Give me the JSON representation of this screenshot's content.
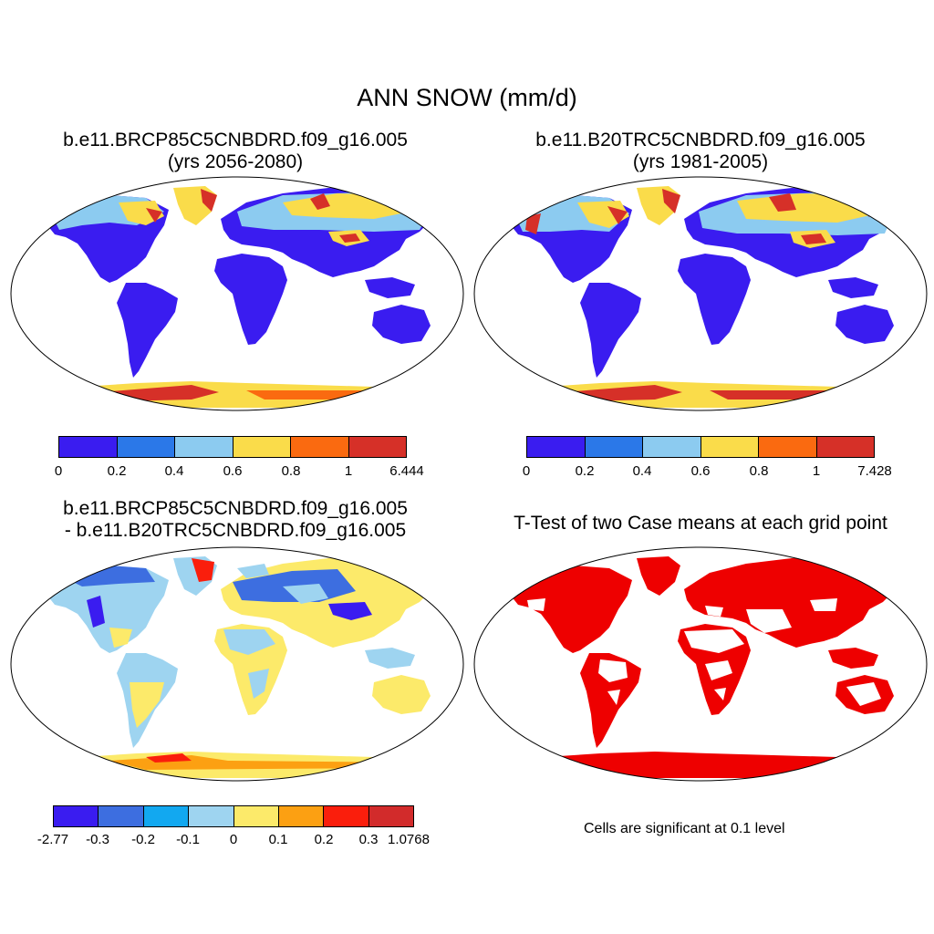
{
  "title": "ANN SNOW (mm/d)",
  "panels": [
    {
      "id": "future",
      "title_line1": "b.e11.BRCP85C5CNBDRD.f09_g16.005",
      "title_line2": "(yrs 2056-2080)",
      "colorbar": {
        "colors": [
          "#3a1cf0",
          "#2b78e8",
          "#8ccbf0",
          "#fadc4a",
          "#fa6a10",
          "#d63028"
        ],
        "labels": [
          "0",
          "0.2",
          "0.4",
          "0.6",
          "0.8",
          "1",
          "6.444"
        ]
      }
    },
    {
      "id": "historical",
      "title_line1": "b.e11.B20TRC5CNBDRD.f09_g16.005",
      "title_line2": "(yrs 1981-2005)",
      "colorbar": {
        "colors": [
          "#3a1cf0",
          "#2b78e8",
          "#8ccbf0",
          "#fadc4a",
          "#fa6a10",
          "#d63028"
        ],
        "labels": [
          "0",
          "0.2",
          "0.4",
          "0.6",
          "0.8",
          "1",
          "7.428"
        ]
      }
    },
    {
      "id": "difference",
      "title_line1": "b.e11.BRCP85C5CNBDRD.f09_g16.005",
      "title_line2": "- b.e11.B20TRC5CNBDRD.f09_g16.005",
      "colorbar": {
        "colors": [
          "#3a1cf0",
          "#3d6ee0",
          "#12a8f0",
          "#9ed4f0",
          "#fcea6a",
          "#fca012",
          "#fa1e0c",
          "#d22b2b"
        ],
        "labels": [
          "-2.77",
          "-0.3",
          "-0.2",
          "-0.1",
          "0",
          "0.1",
          "0.2",
          "0.3",
          "1.0768"
        ]
      }
    },
    {
      "id": "ttest",
      "title_line1": "T-Test of two Case means at each grid point",
      "note": "Cells are significant at 0.1 level",
      "color": "#ee0000"
    }
  ],
  "map_colors": {
    "snow_low": "#3a1cf0",
    "snow_mid": "#8ccbf0",
    "snow_high": "#fadc4a",
    "snow_max": "#d63028",
    "diff_neg": "#9ed4f0",
    "diff_pos": "#fcea6a",
    "diff_strong_neg": "#3d6ee0",
    "diff_strong_pos": "#fa1e0c",
    "signif": "#ee0000"
  }
}
